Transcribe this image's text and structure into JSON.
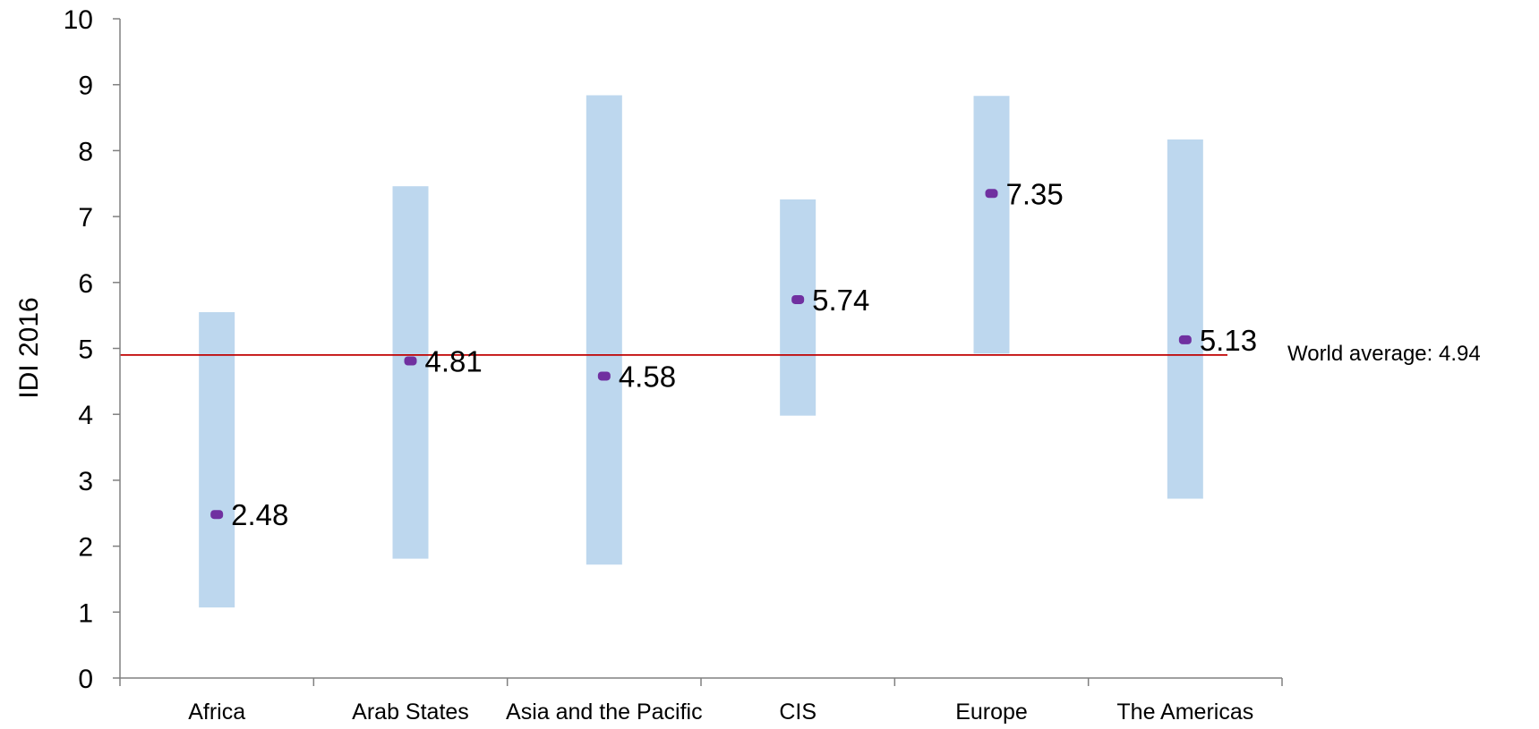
{
  "chart_data": {
    "type": "range",
    "ylabel": "IDI 2016",
    "xlabel": "",
    "ylim": [
      0,
      10
    ],
    "yticks": [
      "0",
      "1",
      "2",
      "3",
      "4",
      "5",
      "6",
      "7",
      "8",
      "9",
      "10"
    ],
    "categories": [
      "Africa",
      "Arab States",
      "Asia and the Pacific",
      "CIS",
      "Europe",
      "The Americas"
    ],
    "range_min": [
      1.07,
      1.81,
      1.72,
      3.98,
      4.92,
      2.72
    ],
    "range_max": [
      5.55,
      7.46,
      8.84,
      7.26,
      8.83,
      8.17
    ],
    "values": [
      2.48,
      4.81,
      4.58,
      5.74,
      7.35,
      5.13
    ],
    "value_labels": [
      "2.48",
      "4.81",
      "4.58",
      "5.74",
      "7.35",
      "5.13"
    ],
    "reference_line": {
      "value": 4.94,
      "label": "World average: 4.94"
    },
    "grid": false,
    "colors": {
      "range_bar": "#bdd7ee",
      "point": "#7030a0",
      "reference_line": "#c00000",
      "axis": "#808080"
    }
  }
}
